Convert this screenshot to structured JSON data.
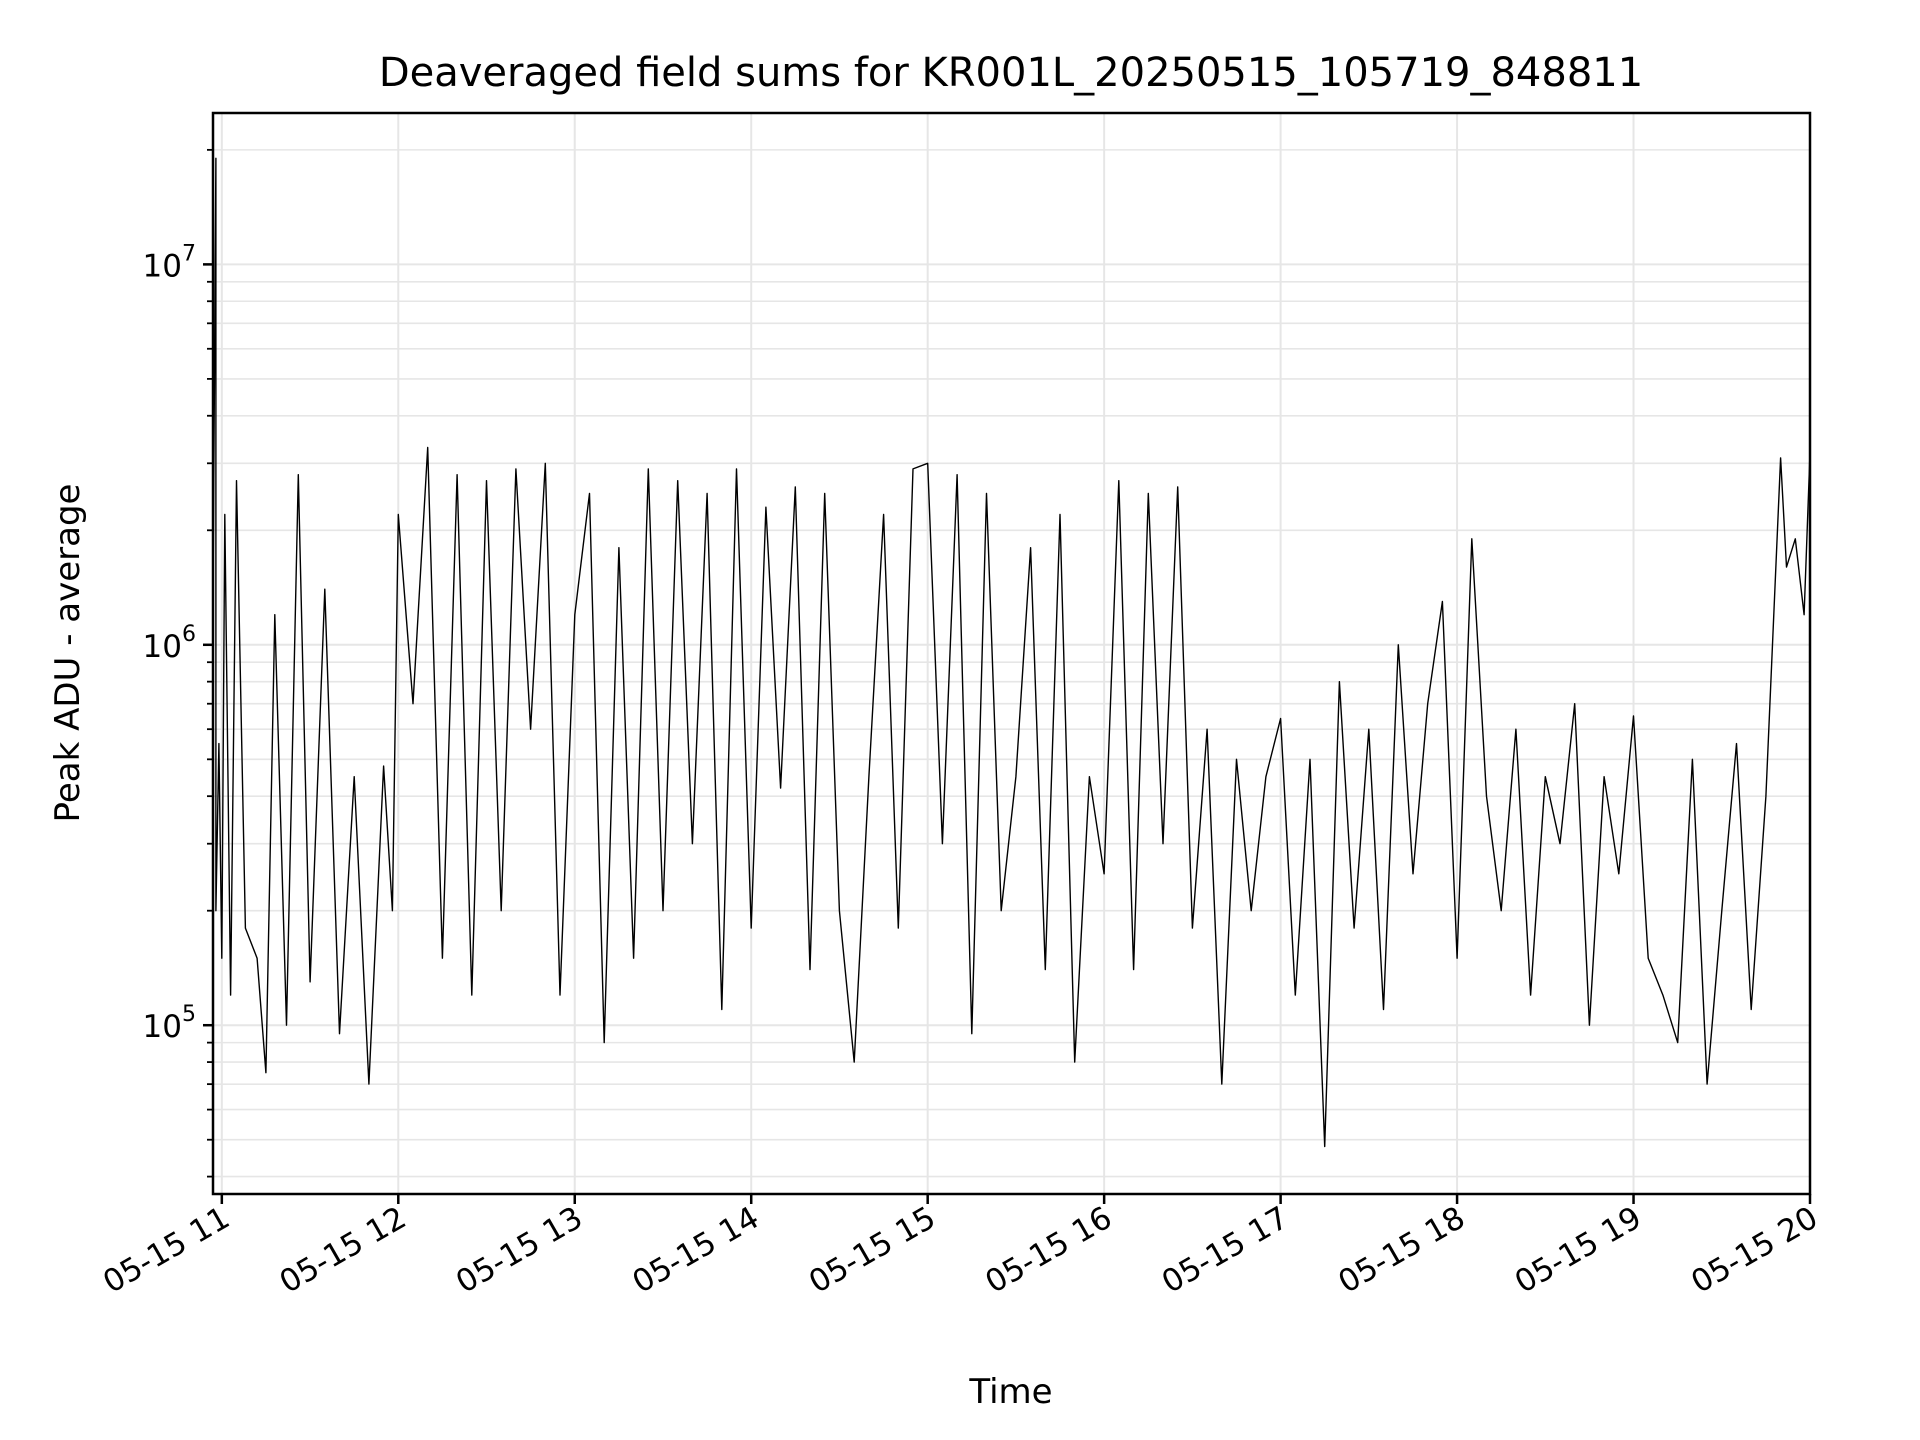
{
  "chart_data": {
    "type": "line",
    "title": "Deaveraged field sums for KR001L_20250515_105719_848811",
    "xlabel": "Time",
    "ylabel": "Peak ADU - average",
    "yscale": "log",
    "ylim": [
      36000,
      25000000
    ],
    "xlim": [
      "2025-05-15 10:57",
      "2025-05-15 20:00"
    ],
    "grid": "both",
    "line_color": "#000000",
    "grid_color": "#e6e6e6",
    "x_ticks": [
      "2025-05-15 11:00",
      "2025-05-15 12:00",
      "2025-05-15 13:00",
      "2025-05-15 14:00",
      "2025-05-15 15:00",
      "2025-05-15 16:00",
      "2025-05-15 17:00",
      "2025-05-15 18:00",
      "2025-05-15 19:00",
      "2025-05-15 20:00"
    ],
    "x_tick_labels": [
      "05-15 11",
      "05-15 12",
      "05-15 13",
      "05-15 14",
      "05-15 15",
      "05-15 16",
      "05-15 17",
      "05-15 18",
      "05-15 19",
      "05-15 20"
    ],
    "y_ticks": [
      {
        "value": 100000,
        "base": "10",
        "exp": "5"
      },
      {
        "value": 1000000,
        "base": "10",
        "exp": "6"
      },
      {
        "value": 10000000,
        "base": "10",
        "exp": "7"
      }
    ],
    "series": [
      {
        "x": [
          "2025-05-15 10:57",
          "2025-05-15 10:58",
          "2025-05-15 10:58",
          "2025-05-15 10:59",
          "2025-05-15 11:00",
          "2025-05-15 11:01",
          "2025-05-15 11:03",
          "2025-05-15 11:05",
          "2025-05-15 11:08",
          "2025-05-15 11:12",
          "2025-05-15 11:15",
          "2025-05-15 11:18",
          "2025-05-15 11:22",
          "2025-05-15 11:26",
          "2025-05-15 11:30",
          "2025-05-15 11:35",
          "2025-05-15 11:40",
          "2025-05-15 11:45",
          "2025-05-15 11:50",
          "2025-05-15 11:55",
          "2025-05-15 11:58",
          "2025-05-15 12:00",
          "2025-05-15 12:05",
          "2025-05-15 12:10",
          "2025-05-15 12:15",
          "2025-05-15 12:20",
          "2025-05-15 12:25",
          "2025-05-15 12:30",
          "2025-05-15 12:35",
          "2025-05-15 12:40",
          "2025-05-15 12:45",
          "2025-05-15 12:50",
          "2025-05-15 12:55",
          "2025-05-15 13:00",
          "2025-05-15 13:05",
          "2025-05-15 13:10",
          "2025-05-15 13:15",
          "2025-05-15 13:20",
          "2025-05-15 13:25",
          "2025-05-15 13:30",
          "2025-05-15 13:35",
          "2025-05-15 13:40",
          "2025-05-15 13:45",
          "2025-05-15 13:50",
          "2025-05-15 13:55",
          "2025-05-15 14:00",
          "2025-05-15 14:05",
          "2025-05-15 14:10",
          "2025-05-15 14:15",
          "2025-05-15 14:20",
          "2025-05-15 14:25",
          "2025-05-15 14:30",
          "2025-05-15 14:35",
          "2025-05-15 14:40",
          "2025-05-15 14:45",
          "2025-05-15 14:50",
          "2025-05-15 14:55",
          "2025-05-15 15:00",
          "2025-05-15 15:05",
          "2025-05-15 15:10",
          "2025-05-15 15:15",
          "2025-05-15 15:20",
          "2025-05-15 15:25",
          "2025-05-15 15:30",
          "2025-05-15 15:35",
          "2025-05-15 15:40",
          "2025-05-15 15:45",
          "2025-05-15 15:50",
          "2025-05-15 15:55",
          "2025-05-15 16:00",
          "2025-05-15 16:05",
          "2025-05-15 16:10",
          "2025-05-15 16:15",
          "2025-05-15 16:20",
          "2025-05-15 16:25",
          "2025-05-15 16:30",
          "2025-05-15 16:35",
          "2025-05-15 16:40",
          "2025-05-15 16:45",
          "2025-05-15 16:50",
          "2025-05-15 16:55",
          "2025-05-15 17:00",
          "2025-05-15 17:05",
          "2025-05-15 17:10",
          "2025-05-15 17:15",
          "2025-05-15 17:20",
          "2025-05-15 17:25",
          "2025-05-15 17:30",
          "2025-05-15 17:35",
          "2025-05-15 17:40",
          "2025-05-15 17:45",
          "2025-05-15 17:50",
          "2025-05-15 17:55",
          "2025-05-15 18:00",
          "2025-05-15 18:05",
          "2025-05-15 18:10",
          "2025-05-15 18:15",
          "2025-05-15 18:20",
          "2025-05-15 18:25",
          "2025-05-15 18:30",
          "2025-05-15 18:35",
          "2025-05-15 18:40",
          "2025-05-15 18:45",
          "2025-05-15 18:50",
          "2025-05-15 18:55",
          "2025-05-15 19:00",
          "2025-05-15 19:05",
          "2025-05-15 19:10",
          "2025-05-15 19:15",
          "2025-05-15 19:20",
          "2025-05-15 19:25",
          "2025-05-15 19:30",
          "2025-05-15 19:35",
          "2025-05-15 19:40",
          "2025-05-15 19:45",
          "2025-05-15 19:50",
          "2025-05-15 19:52",
          "2025-05-15 19:55",
          "2025-05-15 19:58",
          "2025-05-15 20:00"
        ],
        "y": [
          1300000,
          19000000,
          200000,
          550000,
          150000,
          2200000,
          120000,
          2700000,
          180000,
          150000,
          75000,
          1200000,
          100000,
          2800000,
          130000,
          1400000,
          95000,
          450000,
          70000,
          480000,
          200000,
          2200000,
          700000,
          3300000,
          150000,
          2800000,
          120000,
          2700000,
          200000,
          2900000,
          600000,
          3000000,
          120000,
          1200000,
          2500000,
          90000,
          1800000,
          150000,
          2900000,
          200000,
          2700000,
          300000,
          2500000,
          110000,
          2900000,
          180000,
          2300000,
          420000,
          2600000,
          140000,
          2500000,
          200000,
          80000,
          450000,
          2200000,
          180000,
          2900000,
          3000000,
          300000,
          2800000,
          95000,
          2500000,
          200000,
          450000,
          1800000,
          140000,
          2200000,
          80000,
          450000,
          250000,
          2700000,
          140000,
          2500000,
          300000,
          2600000,
          180000,
          600000,
          70000,
          500000,
          200000,
          450000,
          640000,
          120000,
          500000,
          48000,
          800000,
          180000,
          600000,
          110000,
          1000000,
          250000,
          700000,
          1300000,
          150000,
          1900000,
          400000,
          200000,
          600000,
          120000,
          450000,
          300000,
          700000,
          100000,
          450000,
          250000,
          650000,
          150000,
          120000,
          90000,
          500000,
          70000,
          200000,
          550000,
          110000,
          400000,
          3100000,
          1600000,
          1900000,
          1200000,
          3200000
        ]
      }
    ]
  }
}
